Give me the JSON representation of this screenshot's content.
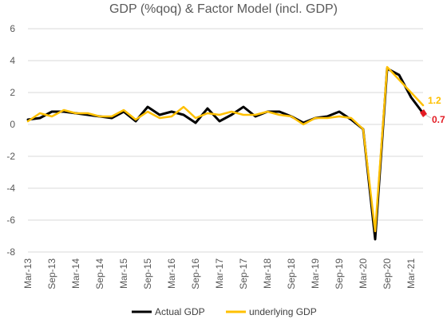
{
  "chart_data": {
    "type": "line",
    "title": "GDP (%qoq) & Factor Model (incl. GDP)",
    "xlabel": "",
    "ylabel": "",
    "ylim": [
      -8,
      6
    ],
    "yticks": [
      6,
      4,
      2,
      0,
      -2,
      -4,
      -6,
      -8
    ],
    "grid": true,
    "legend_position": "bottom",
    "x": [
      "Mar-13",
      "Jun-13",
      "Sep-13",
      "Dec-13",
      "Mar-14",
      "Jun-14",
      "Sep-14",
      "Dec-14",
      "Mar-15",
      "Jun-15",
      "Sep-15",
      "Dec-15",
      "Mar-16",
      "Jun-16",
      "Sep-16",
      "Dec-16",
      "Mar-17",
      "Jun-17",
      "Sep-17",
      "Dec-17",
      "Mar-18",
      "Jun-18",
      "Sep-18",
      "Dec-18",
      "Mar-19",
      "Jun-19",
      "Sep-19",
      "Dec-19",
      "Mar-20",
      "Jun-20",
      "Sep-20",
      "Dec-20",
      "Mar-21",
      "Jun-21"
    ],
    "xtick_labels": [
      "Mar-13",
      "Sep-13",
      "Mar-14",
      "Sep-14",
      "Mar-15",
      "Sep-15",
      "Mar-16",
      "Sep-16",
      "Mar-17",
      "Sep-17",
      "Mar-18",
      "Sep-18",
      "Mar-19",
      "Sep-19",
      "Mar-20",
      "Sep-20",
      "Mar-21"
    ],
    "series": [
      {
        "name": "Actual GDP",
        "color": "#000000",
        "values": [
          0.3,
          0.4,
          0.8,
          0.8,
          0.7,
          0.6,
          0.5,
          0.4,
          0.8,
          0.2,
          1.1,
          0.6,
          0.8,
          0.6,
          0.1,
          1.0,
          0.2,
          0.6,
          1.1,
          0.5,
          0.8,
          0.8,
          0.5,
          0.1,
          0.4,
          0.5,
          0.8,
          0.3,
          -0.3,
          -7.2,
          3.5,
          3.1,
          1.7,
          0.7
        ]
      },
      {
        "name": "underlying GDP",
        "color": "#FFC000",
        "values": [
          0.2,
          0.7,
          0.5,
          0.9,
          0.7,
          0.7,
          0.5,
          0.5,
          0.9,
          0.3,
          0.8,
          0.4,
          0.5,
          1.1,
          0.4,
          0.7,
          0.6,
          0.8,
          0.6,
          0.6,
          0.8,
          0.6,
          0.5,
          0.0,
          0.4,
          0.4,
          0.5,
          0.4,
          -0.3,
          -6.7,
          3.6,
          2.8,
          2.0,
          1.2
        ]
      }
    ],
    "end_labels": [
      {
        "series": "underlying GDP",
        "text": "1.2",
        "color": "#FFC000"
      },
      {
        "series": "Actual GDP",
        "text": "0.7",
        "color": "#E31B23"
      }
    ]
  }
}
